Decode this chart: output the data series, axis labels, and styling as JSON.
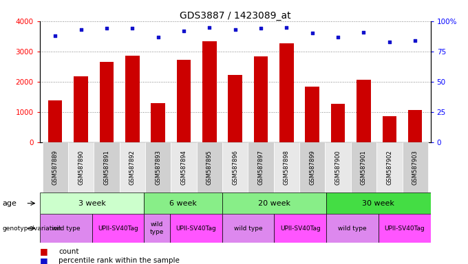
{
  "title": "GDS3887 / 1423089_at",
  "samples": [
    "GSM587889",
    "GSM587890",
    "GSM587891",
    "GSM587892",
    "GSM587893",
    "GSM587894",
    "GSM587895",
    "GSM587896",
    "GSM587897",
    "GSM587898",
    "GSM587899",
    "GSM587900",
    "GSM587901",
    "GSM587902",
    "GSM587903"
  ],
  "counts": [
    1400,
    2180,
    2650,
    2870,
    1310,
    2720,
    3330,
    2230,
    2830,
    3270,
    1840,
    1280,
    2080,
    870,
    1080
  ],
  "percentiles": [
    88,
    93,
    94,
    94,
    87,
    92,
    95,
    93,
    94,
    95,
    90,
    87,
    91,
    83,
    84
  ],
  "bar_color": "#cc0000",
  "scatter_color": "#1111cc",
  "ylim_left": [
    0,
    4000
  ],
  "ylim_right": [
    0,
    100
  ],
  "yticks_left": [
    0,
    1000,
    2000,
    3000,
    4000
  ],
  "yticks_right": [
    0,
    25,
    50,
    75,
    100
  ],
  "age_groups": [
    {
      "label": "3 week",
      "start": 0,
      "end": 4,
      "color": "#ccffcc"
    },
    {
      "label": "6 week",
      "start": 4,
      "end": 7,
      "color": "#88ee88"
    },
    {
      "label": "20 week",
      "start": 7,
      "end": 11,
      "color": "#88ee88"
    },
    {
      "label": "30 week",
      "start": 11,
      "end": 15,
      "color": "#44dd44"
    }
  ],
  "genotype_groups": [
    {
      "label": "wild type",
      "start": 0,
      "end": 2,
      "color": "#dd88ee"
    },
    {
      "label": "UPII-SV40Tag",
      "start": 2,
      "end": 4,
      "color": "#ff55ff"
    },
    {
      "label": "wild\ntype",
      "start": 4,
      "end": 5,
      "color": "#dd88ee"
    },
    {
      "label": "UPII-SV40Tag",
      "start": 5,
      "end": 7,
      "color": "#ff55ff"
    },
    {
      "label": "wild type",
      "start": 7,
      "end": 9,
      "color": "#dd88ee"
    },
    {
      "label": "UPII-SV40Tag",
      "start": 9,
      "end": 11,
      "color": "#ff55ff"
    },
    {
      "label": "wild type",
      "start": 11,
      "end": 13,
      "color": "#dd88ee"
    },
    {
      "label": "UPII-SV40Tag",
      "start": 13,
      "end": 15,
      "color": "#ff55ff"
    }
  ],
  "legend_count_color": "#cc0000",
  "legend_percentile_color": "#1111cc",
  "tick_gray": "#cccccc",
  "label_fontsize": 7,
  "sample_fontsize": 6
}
